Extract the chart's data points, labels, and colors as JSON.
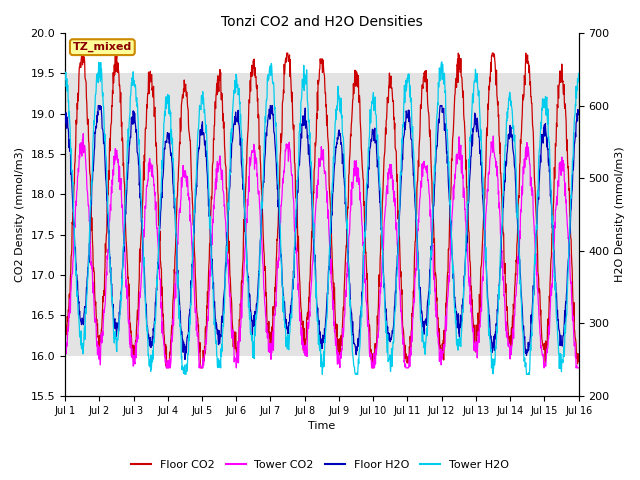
{
  "title": "Tonzi CO2 and H2O Densities",
  "xlabel": "Time",
  "ylabel_left": "CO2 Density (mmol/m3)",
  "ylabel_right": "H2O Density (mmol/m3)",
  "ylim_left": [
    15.5,
    20.0
  ],
  "ylim_right": [
    200,
    700
  ],
  "xlim": [
    0,
    15
  ],
  "xtick_labels": [
    "Jul 1",
    "Jul 2",
    "Jul 3",
    "Jul 4",
    "Jul 5",
    "Jul 6",
    "Jul 7",
    "Jul 8",
    "Jul 9",
    "Jul 10",
    "Jul 11",
    "Jul 12",
    "Jul 13",
    "Jul 14",
    "Jul 15",
    "Jul 16"
  ],
  "xtick_positions": [
    0,
    1,
    2,
    3,
    4,
    5,
    6,
    7,
    8,
    9,
    10,
    11,
    12,
    13,
    14,
    15
  ],
  "colors": {
    "floor_co2": "#CC0000",
    "tower_co2": "#FF00FF",
    "floor_h2o": "#0000BB",
    "tower_h2o": "#00CCEE"
  },
  "legend_labels": [
    "Floor CO2",
    "Tower CO2",
    "Floor H2O",
    "Tower H2O"
  ],
  "annotation_text": "TZ_mixed",
  "annotation_facecolor": "#FFFF99",
  "annotation_edgecolor": "#CC8800",
  "shading_ymin": 16.0,
  "shading_ymax": 19.5,
  "background_color": "#ffffff",
  "axes_facecolor": "#ffffff",
  "n_days": 15,
  "n_pts_per_day": 96,
  "seed": 42,
  "co2_floor_base": 17.8,
  "co2_floor_amp": 3.5,
  "co2_tower_base": 17.2,
  "co2_tower_amp": 2.5,
  "h2o_floor_base": 430,
  "h2o_floor_amp": 300,
  "h2o_tower_base": 440,
  "h2o_tower_amp": 380,
  "linewidth": 0.9
}
